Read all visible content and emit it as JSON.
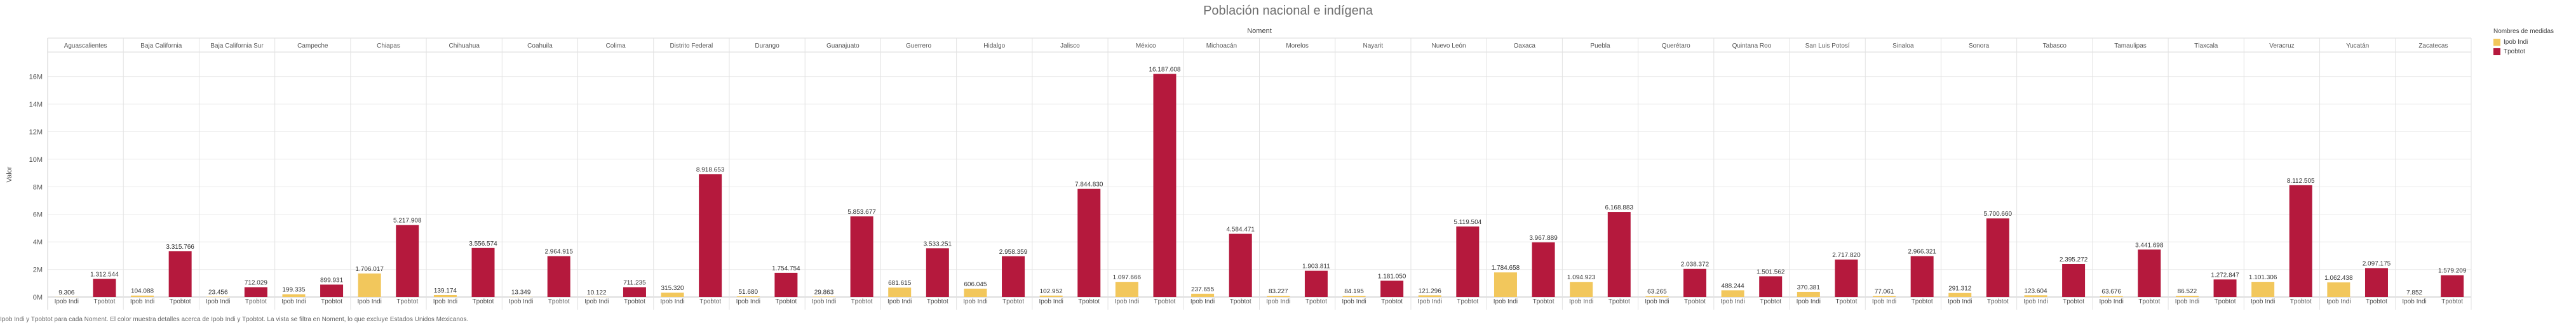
{
  "title": "Población nacional e indígena",
  "footer": "Ipob Indi y Tpobtot para cada Noment. El color muestra detalles acerca de Ipob Indi y Tpobtot. La vista se filtra en Noment, lo que excluye Estados Unidos Mexicanos.",
  "legend": {
    "title": "Nombres de medidas",
    "items": [
      {
        "label": "Ipob Indi",
        "color": "#f2c75c"
      },
      {
        "label": "Tpobtot",
        "color": "#b5193d"
      }
    ]
  },
  "chart_data": {
    "type": "bar",
    "column_header": "Noment",
    "ylabel": "Valor",
    "ylim": [
      0,
      17500000
    ],
    "y_ticks": [
      0,
      2000000,
      4000000,
      6000000,
      8000000,
      10000000,
      12000000,
      14000000,
      16000000
    ],
    "y_tick_labels": [
      "0M",
      "2M",
      "4M",
      "6M",
      "8M",
      "10M",
      "12M",
      "14M",
      "16M"
    ],
    "grid": true,
    "legend_position": "top-right",
    "categories": [
      "Aguascalientes",
      "Baja California",
      "Baja California Sur",
      "Campeche",
      "Chiapas",
      "Chihuahua",
      "Coahuila",
      "Colima",
      "Distrito Federal",
      "Durango",
      "Guanajuato",
      "Guerrero",
      "Hidalgo",
      "Jalisco",
      "México",
      "Michoacán",
      "Morelos",
      "Nayarit",
      "Nuevo León",
      "Oaxaca",
      "Puebla",
      "Querétaro",
      "Quintana Roo",
      "San Luis Potosí",
      "Sinaloa",
      "Sonora",
      "Tabasco",
      "Tamaulipas",
      "Tlaxcala",
      "Veracruz",
      "Yucatán",
      "Zacatecas"
    ],
    "series": [
      {
        "name": "Ipob Indi",
        "color": "#f2c75c",
        "values": [
          9306,
          104088,
          23456,
          199335,
          1706017,
          139174,
          13349,
          10122,
          315320,
          51680,
          29863,
          681615,
          606045,
          102952,
          1097666,
          237655,
          83227,
          84195,
          121296,
          1784658,
          1094923,
          63265,
          488244,
          370381,
          77061,
          291312,
          123604,
          63676,
          86522,
          1101306,
          1062438,
          7852
        ],
        "labels": [
          "9.306",
          "104.088",
          "23.456",
          "199.335",
          "1.706.017",
          "139.174",
          "13.349",
          "10.122",
          "315.320",
          "51.680",
          "29.863",
          "681.615",
          "606.045",
          "102.952",
          "1.097.666",
          "237.655",
          "83.227",
          "84.195",
          "121.296",
          "1.784.658",
          "1.094.923",
          "63.265",
          "488.244",
          "370.381",
          "77.061",
          "291.312",
          "123.604",
          "63.676",
          "86.522",
          "1.101.306",
          "1.062.438",
          "7.852"
        ]
      },
      {
        "name": "Tpobtot",
        "color": "#b5193d",
        "values": [
          1312544,
          3315766,
          712029,
          899931,
          5217908,
          3556574,
          2964915,
          711235,
          8918653,
          1754754,
          5853677,
          3533251,
          2958359,
          7844830,
          16187608,
          4584471,
          1903811,
          1181050,
          5119504,
          3967889,
          6168883,
          2038372,
          1501562,
          2717820,
          2966321,
          5700660,
          2395272,
          3441698,
          1272847,
          8112505,
          2097175,
          1579209
        ],
        "labels": [
          "1.312.544",
          "3.315.766",
          "712.029",
          "899.931",
          "5.217.908",
          "3.556.574",
          "2.964.915",
          "711.235",
          "8.918.653",
          "1.754.754",
          "5.853.677",
          "3.533.251",
          "2.958.359",
          "7.844.830",
          "16.187.608",
          "4.584.471",
          "1.903.811",
          "1.181.050",
          "5.119.504",
          "3.967.889",
          "6.168.883",
          "2.038.372",
          "1.501.562",
          "2.717.820",
          "2.966.321",
          "5.700.660",
          "2.395.272",
          "3.441.698",
          "1.272.847",
          "8.112.505",
          "2.097.175",
          "1.579.209"
        ]
      }
    ]
  }
}
